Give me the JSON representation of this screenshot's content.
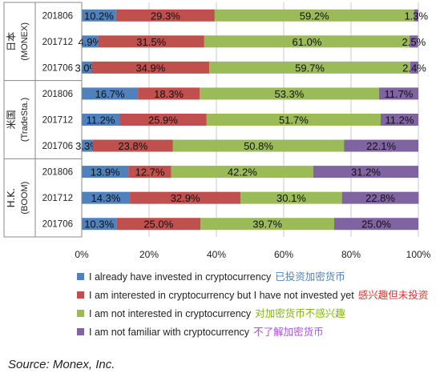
{
  "chart_data": {
    "type": "bar",
    "orientation": "horizontal",
    "stacked": "percent",
    "xlim": [
      0,
      100
    ],
    "x_ticks": [
      "0%",
      "20%",
      "40%",
      "60%",
      "80%",
      "100%"
    ],
    "grid": true,
    "legend_position": "bottom",
    "groups": [
      {
        "label": "日本",
        "sublabel": "(MONEX)",
        "periods": [
          "201806",
          "201712",
          "201706"
        ]
      },
      {
        "label": "米国",
        "sublabel": "(TradeSta.)",
        "periods": [
          "201806",
          "201712",
          "201706"
        ]
      },
      {
        "label": "H.K.",
        "sublabel": "(BOOM)",
        "periods": [
          "201806",
          "201712",
          "201706"
        ]
      }
    ],
    "series": [
      {
        "name": "I already have invested in cryptocurrency",
        "name_cn": "已投资加密货币",
        "color": "#4f81bd",
        "cn_color": "#4f81bd",
        "values": [
          10.2,
          4.9,
          3.0,
          16.7,
          11.2,
          3.3,
          13.9,
          14.3,
          10.3
        ],
        "labels": [
          "10.2%",
          "4.9%",
          "3.0%",
          "16.7%",
          "11.2%",
          "3.3%",
          "13.9%",
          "14.3%",
          "10.3%"
        ]
      },
      {
        "name": "I am interested in cryptocurrency but I have not invested yet",
        "name_cn": "感兴趣但未投资",
        "color": "#c0504d",
        "cn_color": "#e03030",
        "values": [
          29.3,
          31.5,
          34.9,
          18.3,
          25.9,
          23.8,
          12.7,
          32.9,
          25.0
        ],
        "labels": [
          "29.3%",
          "31.5%",
          "34.9%",
          "18.3%",
          "25.9%",
          "23.8%",
          "12.7%",
          "32.9%",
          "25.0%"
        ]
      },
      {
        "name": "I am not interested in cryptocurrency",
        "name_cn": "对加密货币不感兴趣",
        "color": "#9bbb59",
        "cn_color": "#7fba00",
        "values": [
          59.2,
          61.0,
          59.7,
          53.3,
          51.7,
          50.8,
          42.2,
          30.1,
          39.7
        ],
        "labels": [
          "59.2%",
          "61.0%",
          "59.7%",
          "53.3%",
          "51.7%",
          "50.8%",
          "42.2%",
          "30.1%",
          "39.7%"
        ]
      },
      {
        "name": "I am not familiar with cryptocurrency",
        "name_cn": "不了解加密货币",
        "color": "#8064a2",
        "cn_color": "#b050e0",
        "values": [
          1.3,
          2.5,
          2.4,
          11.7,
          11.2,
          22.1,
          31.2,
          22.8,
          25.0
        ],
        "labels": [
          "1.3%",
          "2.5%",
          "2.4%",
          "11.7%",
          "11.2%",
          "22.1%",
          "31.2%",
          "22.8%",
          "25.0%"
        ]
      }
    ]
  },
  "source": "Source: Monex, Inc."
}
